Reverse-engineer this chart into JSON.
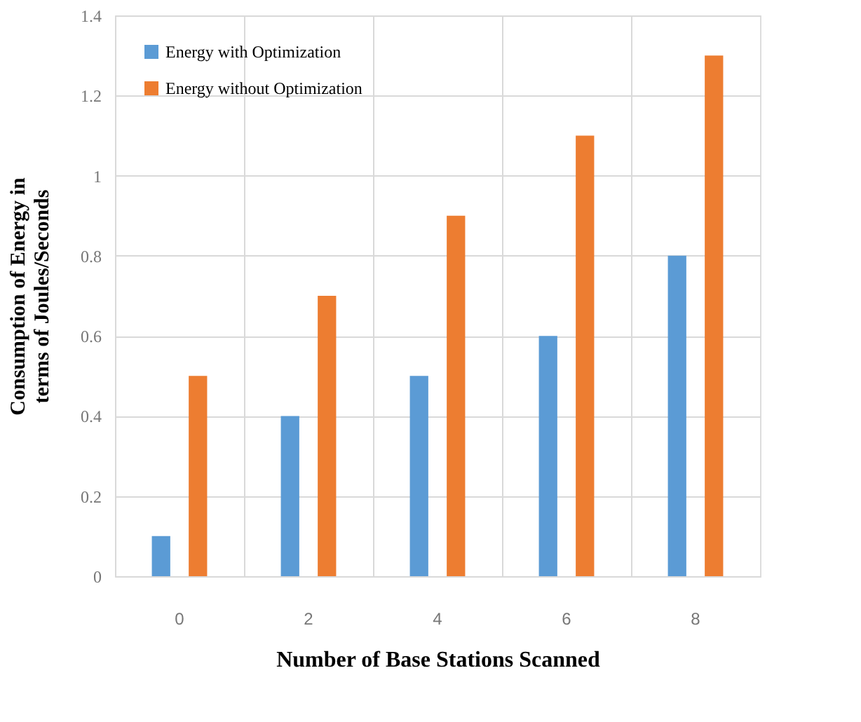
{
  "chart_data": {
    "type": "bar",
    "xlabel": "Number of Base Stations Scanned",
    "ylabel": "Consumption of Energy in terms of Joules/Seconds",
    "categories": [
      "0",
      "2",
      "4",
      "6",
      "8"
    ],
    "series": [
      {
        "name": "Energy with Optimization",
        "color": "#5b9bd5",
        "values": [
          0.1,
          0.4,
          0.5,
          0.6,
          0.8
        ]
      },
      {
        "name": "Energy without Optimization",
        "color": "#ed7d31",
        "values": [
          0.5,
          0.7,
          0.9,
          1.1,
          1.3
        ]
      }
    ],
    "ylim": [
      0,
      1.4
    ],
    "yticks": [
      0,
      0.2,
      0.4,
      0.6,
      0.8,
      1,
      1.2,
      1.4
    ],
    "grid": true,
    "legend": "top left"
  }
}
